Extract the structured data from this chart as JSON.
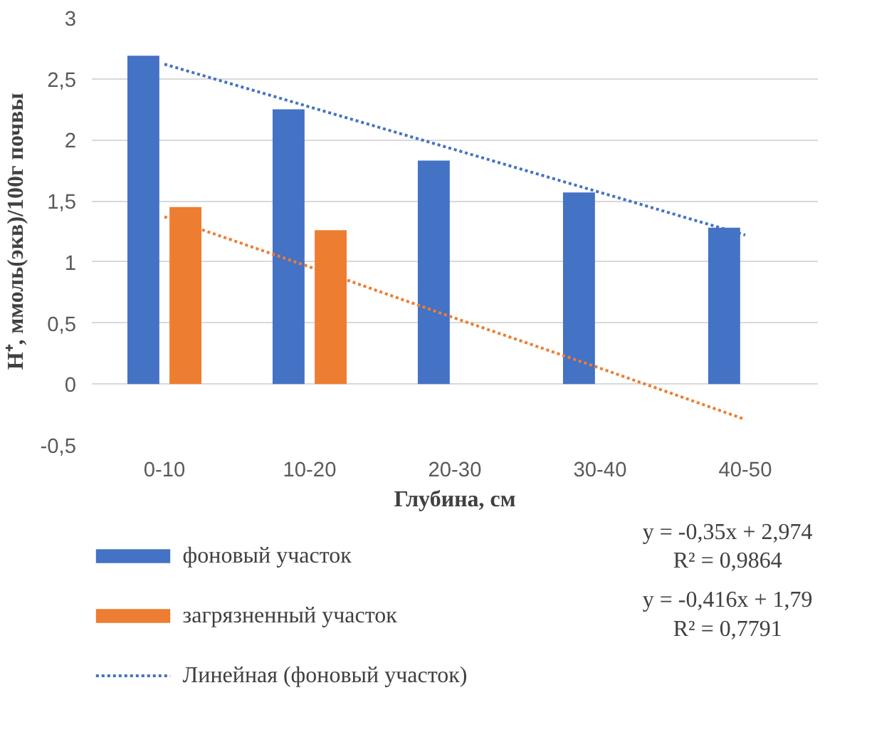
{
  "chart_data": {
    "type": "bar",
    "xlabel": "Глубина, см",
    "ylabel": "H⁺, ммоль(экв)/100г почвы",
    "categories": [
      "0-10",
      "10-20",
      "20-30",
      "30-40",
      "40-50"
    ],
    "series": [
      {
        "name": "фоновый участок",
        "color": "#4472c4",
        "values": [
          2.69,
          2.25,
          1.83,
          1.57,
          1.28
        ]
      },
      {
        "name": "загрязненный участок",
        "color": "#ed7d31",
        "values": [
          1.45,
          1.26,
          0,
          0,
          0
        ]
      },
      {
        "name": "Линейная (фоновый участок)",
        "type": "line",
        "line_style": "dotted",
        "color": "#4472c4",
        "values": [
          2.62,
          2.27,
          1.92,
          1.57,
          1.22
        ]
      },
      {
        "type": "line",
        "line_style": "dotted",
        "color": "#ed7d31",
        "values": [
          1.37,
          0.96,
          0.54,
          0.13,
          -0.29
        ]
      }
    ],
    "ylim": [
      -0.5,
      3
    ],
    "yticks": [
      {
        "value": -0.5,
        "label": "-0,5"
      },
      0,
      {
        "value": 0.5,
        "label": "0,5"
      },
      1,
      {
        "value": 1.5,
        "label": "1,5"
      },
      2,
      {
        "value": 2.5,
        "label": "2,5"
      },
      3
    ],
    "grid": "y",
    "legend": "bottom",
    "annotations": [
      "y = -0,35x + 2,974\nR² = 0,9864",
      "y = -0,416x + 1,79\nR² = 0,7791"
    ]
  }
}
